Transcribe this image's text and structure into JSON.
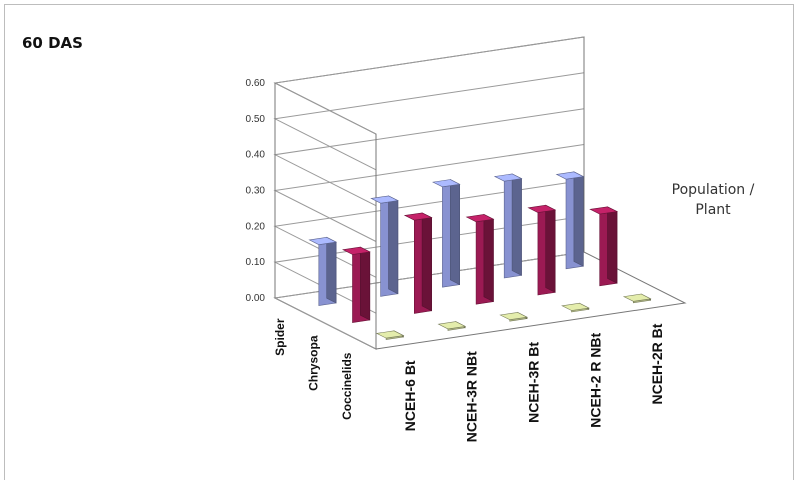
{
  "chart_data": {
    "type": "bar",
    "title": "60 DAS",
    "zlabel": "Population / Plant",
    "categories": [
      "NCEH-6 Bt",
      "NCEH-3R NBt",
      "NCEH-3R Bt",
      "NCEH-2 R NBt",
      "NCEH-2R Bt"
    ],
    "series": [
      {
        "name": "Spider",
        "values": [
          0.17,
          0.26,
          0.28,
          0.27,
          0.25
        ]
      },
      {
        "name": "Chrysopa",
        "values": [
          0.19,
          0.26,
          0.23,
          0.23,
          0.2
        ]
      },
      {
        "name": "Coccinelids",
        "values": [
          0.0,
          0.0,
          0.0,
          0.0,
          0.0
        ]
      }
    ],
    "ylim": [
      0,
      0.6
    ],
    "yticks": [
      "0.00",
      "0.10",
      "0.20",
      "0.30",
      "0.40",
      "0.50",
      "0.60"
    ],
    "colors": {
      "Spider": "#9aa6ee",
      "Chrysopa": "#b01e5e",
      "Coccinelids": "#ccd49a"
    }
  }
}
